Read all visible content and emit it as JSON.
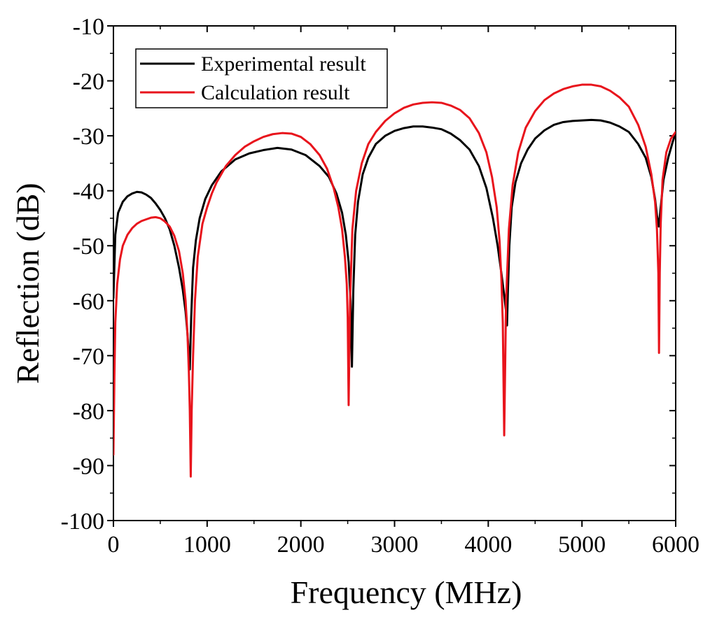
{
  "chart_data": {
    "type": "line",
    "title": "",
    "xlabel": "Frequency (MHz)",
    "ylabel": "Reflection (dB)",
    "xlim": [
      0,
      6000
    ],
    "ylim": [
      -100,
      -10
    ],
    "xticks": [
      0,
      1000,
      2000,
      3000,
      4000,
      5000,
      6000
    ],
    "xtick_labels": [
      "0",
      "1000",
      "2000",
      "3000",
      "4000",
      "5000",
      "6000"
    ],
    "yticks": [
      -10,
      -20,
      -30,
      -40,
      -50,
      -60,
      -70,
      -80,
      -90,
      -100
    ],
    "ytick_labels": [
      "-10",
      "-20",
      "-30",
      "-40",
      "-50",
      "-60",
      "-70",
      "-80",
      "-90",
      "-100"
    ],
    "grid": false,
    "legend_position": "top-left",
    "series": [
      {
        "name": "Experimental result",
        "color": "#000000",
        "x": [
          0,
          20,
          50,
          100,
          150,
          200,
          250,
          300,
          350,
          400,
          450,
          500,
          550,
          600,
          650,
          700,
          740,
          770,
          790,
          805,
          815,
          830,
          850,
          880,
          920,
          980,
          1050,
          1150,
          1300,
          1450,
          1600,
          1750,
          1900,
          2050,
          2200,
          2300,
          2380,
          2440,
          2480,
          2510,
          2530,
          2545,
          2560,
          2580,
          2610,
          2660,
          2720,
          2800,
          2900,
          3000,
          3100,
          3200,
          3300,
          3400,
          3500,
          3600,
          3700,
          3800,
          3900,
          3980,
          4050,
          4100,
          4140,
          4170,
          4190,
          4200,
          4210,
          4225,
          4250,
          4290,
          4350,
          4420,
          4500,
          4600,
          4700,
          4800,
          4900,
          5000,
          5100,
          5200,
          5300,
          5400,
          5500,
          5600,
          5680,
          5740,
          5780,
          5800,
          5820,
          5840,
          5870,
          5920,
          5970,
          6000
        ],
        "values": [
          -59.5,
          -48,
          -44,
          -42,
          -41,
          -40.5,
          -40.2,
          -40.3,
          -40.7,
          -41.3,
          -42.3,
          -43.5,
          -45,
          -47,
          -50,
          -54,
          -58,
          -62,
          -66,
          -70,
          -72.5,
          -63,
          -54,
          -49,
          -45,
          -41.5,
          -39,
          -36.5,
          -34.3,
          -33.2,
          -32.6,
          -32.2,
          -32.5,
          -33.5,
          -35.5,
          -37.5,
          -40.5,
          -44,
          -48,
          -53,
          -60,
          -72,
          -58,
          -48,
          -42,
          -37,
          -34,
          -31.5,
          -30,
          -29.1,
          -28.6,
          -28.3,
          -28.3,
          -28.5,
          -28.8,
          -29.6,
          -30.8,
          -32.5,
          -35.5,
          -39.5,
          -45,
          -50,
          -55,
          -59,
          -62,
          -64.5,
          -58,
          -50,
          -43,
          -38.5,
          -35,
          -32.5,
          -30.5,
          -29,
          -28,
          -27.5,
          -27.3,
          -27.2,
          -27.1,
          -27.2,
          -27.6,
          -28.3,
          -29.3,
          -31.5,
          -34,
          -37.5,
          -41.5,
          -44.5,
          -46.5,
          -43,
          -38,
          -34,
          -31,
          -29.5
        ]
      },
      {
        "name": "Calculation result",
        "color": "#e8141c",
        "x": [
          0,
          10,
          20,
          40,
          70,
          100,
          150,
          200,
          250,
          300,
          350,
          400,
          450,
          500,
          550,
          600,
          650,
          700,
          740,
          770,
          790,
          805,
          815,
          825,
          835,
          850,
          870,
          900,
          950,
          1000,
          1050,
          1100,
          1200,
          1300,
          1400,
          1500,
          1600,
          1700,
          1800,
          1900,
          2000,
          2100,
          2200,
          2280,
          2350,
          2400,
          2440,
          2470,
          2490,
          2500,
          2510,
          2525,
          2550,
          2590,
          2650,
          2720,
          2800,
          2900,
          3000,
          3100,
          3200,
          3300,
          3400,
          3500,
          3600,
          3700,
          3800,
          3900,
          3980,
          4040,
          4090,
          4120,
          4140,
          4155,
          4170,
          4190,
          4220,
          4260,
          4320,
          4400,
          4500,
          4600,
          4700,
          4800,
          4900,
          5000,
          5100,
          5200,
          5300,
          5400,
          5500,
          5600,
          5680,
          5740,
          5780,
          5800,
          5815,
          5822,
          5830,
          5840,
          5860,
          5900,
          5950,
          6000
        ],
        "values": [
          -88,
          -74,
          -64,
          -57,
          -52.5,
          -50,
          -48,
          -46.8,
          -46,
          -45.5,
          -45.2,
          -44.9,
          -44.8,
          -45,
          -45.6,
          -46.5,
          -48.2,
          -51,
          -55,
          -60,
          -66,
          -73,
          -80,
          -92,
          -80,
          -70,
          -60,
          -52,
          -46,
          -43,
          -40.5,
          -38.5,
          -35.5,
          -33.5,
          -32,
          -31,
          -30.2,
          -29.7,
          -29.5,
          -29.6,
          -30.2,
          -31.5,
          -33.5,
          -36,
          -39.5,
          -43,
          -47,
          -52,
          -57,
          -63,
          -79,
          -60,
          -47,
          -40,
          -35,
          -31.5,
          -29.3,
          -27.3,
          -25.9,
          -24.9,
          -24.3,
          -24,
          -23.9,
          -24,
          -24.5,
          -25.3,
          -26.8,
          -29.5,
          -33,
          -37.5,
          -43,
          -49,
          -56,
          -64,
          -84.5,
          -60,
          -47,
          -39,
          -33,
          -28.5,
          -25.5,
          -23.5,
          -22.3,
          -21.5,
          -21,
          -20.7,
          -20.7,
          -21,
          -21.8,
          -23,
          -24.7,
          -28,
          -32,
          -37,
          -42,
          -47,
          -55,
          -69.5,
          -55,
          -46,
          -38,
          -33,
          -30.5,
          -29.3
        ]
      }
    ]
  }
}
